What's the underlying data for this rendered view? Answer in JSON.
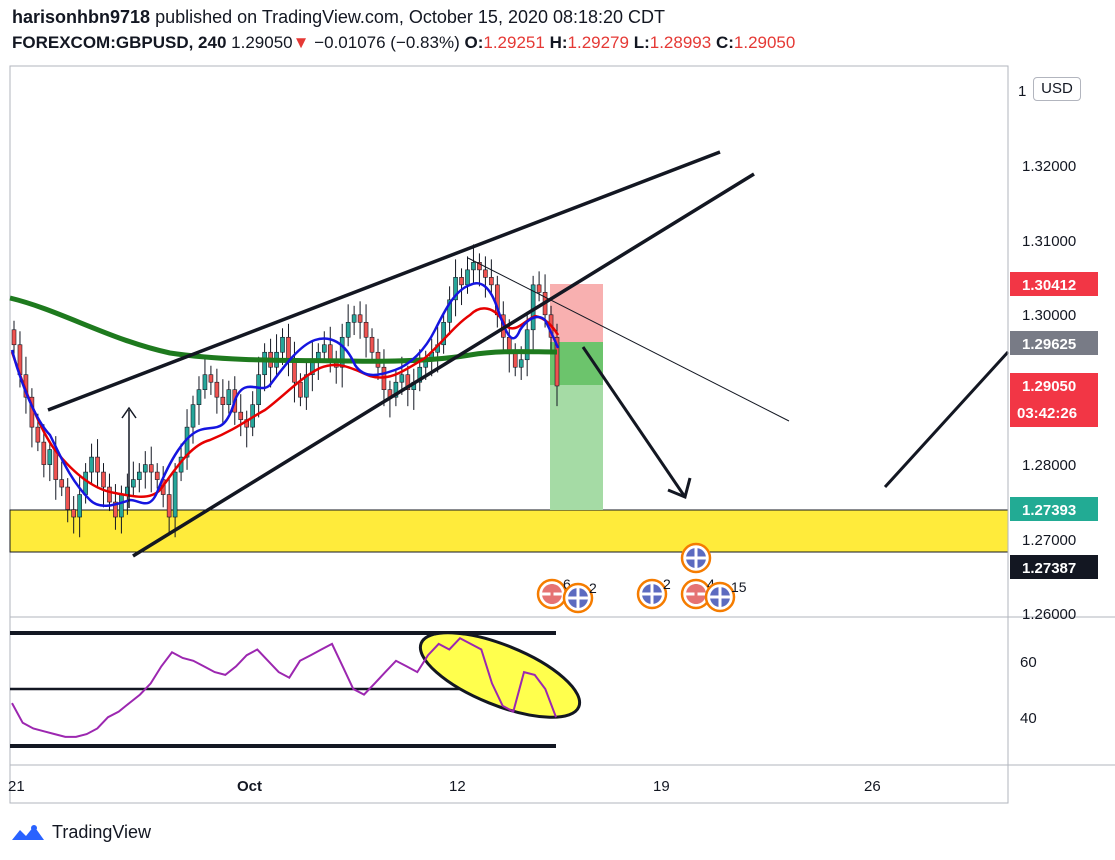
{
  "header": {
    "publisher": "harisonhbn9718",
    "published_text": "published on TradingView.com, October 15, 2020 08:18:20 CDT",
    "symbol": "FOREXCOM:GBPUSD, 240",
    "last": "1.29050",
    "change_arrow": "▼",
    "change": "−0.01076 (−0.83%)",
    "o_label": "O:",
    "o_value": "1.29251",
    "h_label": "H:",
    "h_value": "1.29279",
    "l_label": "L:",
    "l_value": "1.28993",
    "c_label": "C:",
    "c_value": "1.29050"
  },
  "currency_button": "USD",
  "price_axis": [
    "1",
    "1.32000",
    "1.31000",
    "1.30000",
    "1.28000",
    "1.27000",
    "1.26000"
  ],
  "price_tags": [
    {
      "text": "1.30412",
      "color": "#f23645"
    },
    {
      "text": "1.29625",
      "color": "#787b86"
    },
    {
      "text": "1.29050",
      "color": "#f23645"
    },
    {
      "text": "03:42:26",
      "color": "#f23645"
    },
    {
      "text": "1.27393",
      "color": "#22ab94"
    },
    {
      "text": "1.27387",
      "color": "#131722"
    }
  ],
  "rsi_axis": [
    "60",
    "40"
  ],
  "time_axis": [
    "21",
    "Oct",
    "12",
    "19",
    "26"
  ],
  "events": [
    {
      "flag": "us",
      "count": "6"
    },
    {
      "flag": "uk",
      "count": "2"
    },
    {
      "flag": "uk",
      "count": "2"
    },
    {
      "flag": "uk",
      "count": ""
    },
    {
      "flag": "us",
      "count": "4"
    },
    {
      "flag": "uk",
      "count": "15"
    }
  ],
  "footer": {
    "brand": "TradingView",
    "icon": "tradingview-logo-icon"
  },
  "colors": {
    "bull": "#26a69a",
    "bear": "#ef5350",
    "ema_fast": "#1515e0",
    "ema_slow": "#e60000",
    "ma_long": "#1e7a1e",
    "rsi": "#9c27b0",
    "zone": "#ffeb3b"
  },
  "chart_data": {
    "type": "candlestick",
    "symbol": "FOREXCOM:GBPUSD",
    "timeframe": "240",
    "ylim": [
      1.258,
      1.333
    ],
    "x_ticks": [
      "21",
      "Oct",
      "12",
      "19",
      "26"
    ],
    "candles_close": [
      1.296,
      1.292,
      1.289,
      1.285,
      1.283,
      1.28,
      1.282,
      1.278,
      1.277,
      1.274,
      1.273,
      1.276,
      1.279,
      1.281,
      1.279,
      1.277,
      1.275,
      1.273,
      1.276,
      1.277,
      1.278,
      1.279,
      1.28,
      1.279,
      1.278,
      1.276,
      1.273,
      1.279,
      1.281,
      1.285,
      1.288,
      1.29,
      1.292,
      1.291,
      1.289,
      1.288,
      1.29,
      1.287,
      1.286,
      1.285,
      1.288,
      1.292,
      1.295,
      1.293,
      1.295,
      1.297,
      1.294,
      1.291,
      1.289,
      1.292,
      1.294,
      1.295,
      1.296,
      1.294,
      1.293,
      1.297,
      1.299,
      1.3,
      1.299,
      1.297,
      1.295,
      1.293,
      1.29,
      1.289,
      1.291,
      1.292,
      1.29,
      1.291,
      1.293,
      1.294,
      1.295,
      1.296,
      1.299,
      1.302,
      1.305,
      1.304,
      1.306,
      1.307,
      1.306,
      1.305,
      1.304,
      1.3,
      1.297,
      1.295,
      1.293,
      1.294,
      1.298,
      1.304,
      1.303,
      1.3,
      1.297,
      1.2905
    ],
    "moving_averages": [
      {
        "name": "ema_fast",
        "values": [
          1.296,
          1.29,
          1.285,
          1.282,
          1.28,
          1.278,
          1.277,
          1.276,
          1.276,
          1.275,
          1.275,
          1.277,
          1.279,
          1.283,
          1.286,
          1.288,
          1.289,
          1.29,
          1.29,
          1.291,
          1.293,
          1.294,
          1.295,
          1.296,
          1.298,
          1.301,
          1.303,
          1.304,
          1.3,
          1.297,
          1.296,
          1.295
        ]
      },
      {
        "name": "ema_slow",
        "values": [
          1.296,
          1.291,
          1.286,
          1.282,
          1.279,
          1.277,
          1.276,
          1.275,
          1.275,
          1.276,
          1.278,
          1.281,
          1.284,
          1.286,
          1.288,
          1.289,
          1.29,
          1.291,
          1.292,
          1.293,
          1.294,
          1.295,
          1.297,
          1.3,
          1.302,
          1.302,
          1.3,
          1.299,
          1.298,
          1.297
        ]
      },
      {
        "name": "ma_long",
        "values": [
          1.3,
          1.2995,
          1.299,
          1.298,
          1.2975,
          1.297,
          1.2968,
          1.2966,
          1.2964,
          1.2963,
          1.2962,
          1.2962,
          1.2963,
          1.2964,
          1.2965,
          1.2965
        ]
      }
    ],
    "rsi": {
      "levels": [
        70,
        50,
        30
      ],
      "values": [
        45,
        38,
        36,
        35,
        34,
        33,
        33,
        34,
        36,
        40,
        42,
        45,
        48,
        52,
        58,
        63,
        61,
        60,
        58,
        56,
        55,
        58,
        62,
        64,
        60,
        56,
        54,
        60,
        62,
        64,
        66,
        58,
        50,
        48,
        52,
        56,
        60,
        58,
        56,
        62,
        66,
        64,
        68,
        66,
        64,
        52,
        44,
        42,
        56,
        55,
        50,
        40
      ]
    },
    "annotations": {
      "support_zone": [
        1.2685,
        1.2739
      ],
      "trade_entry": 1.29625,
      "stop": 1.30412,
      "target": 1.27393
    }
  }
}
